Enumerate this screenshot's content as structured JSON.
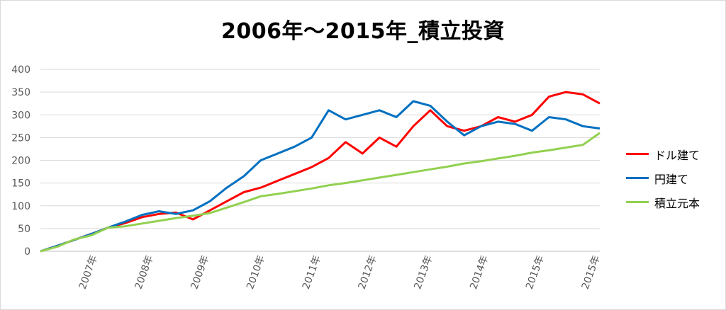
{
  "chart_data": {
    "type": "line",
    "title": "2006年～2015年_積立投資",
    "xlabel": "",
    "ylabel": "",
    "ylim": [
      0,
      400
    ],
    "yticks": [
      "0",
      "50",
      "100",
      "150",
      "200",
      "250",
      "300",
      "350",
      "400"
    ],
    "x_tick_labels": [
      "2007年",
      "2008年",
      "2009年",
      "2010年",
      "2011年",
      "2012年",
      "2013年",
      "2014年",
      "2015年",
      "2015年"
    ],
    "x": [
      "2006-01",
      "2006-06",
      "2007-01",
      "2007-06",
      "2008-01",
      "2008-03",
      "2008-06",
      "2008-09",
      "2008-12",
      "2009-03",
      "2009-06",
      "2009-12",
      "2010-06",
      "2010-12",
      "2011-03",
      "2011-06",
      "2011-09",
      "2011-12",
      "2012-03",
      "2012-06",
      "2012-09",
      "2012-12",
      "2013-03",
      "2013-06",
      "2013-09",
      "2013-12",
      "2014-03",
      "2014-06",
      "2014-09",
      "2014-12",
      "2015-03",
      "2015-06",
      "2015-09",
      "2015-12"
    ],
    "grid": true,
    "legend_position": "right",
    "series": [
      {
        "name": "ドル建て",
        "color": "#ff0000",
        "values": [
          0,
          12,
          25,
          38,
          52,
          62,
          75,
          82,
          85,
          70,
          90,
          110,
          130,
          140,
          155,
          170,
          185,
          205,
          240,
          215,
          250,
          230,
          275,
          310,
          275,
          265,
          275,
          295,
          285,
          300,
          340,
          350,
          345,
          325
        ]
      },
      {
        "name": "円建て",
        "color": "#0070c0",
        "values": [
          0,
          12,
          25,
          38,
          52,
          65,
          80,
          88,
          82,
          90,
          110,
          140,
          165,
          200,
          215,
          230,
          250,
          310,
          290,
          300,
          310,
          295,
          330,
          320,
          285,
          255,
          275,
          285,
          280,
          265,
          295,
          290,
          275,
          270
        ]
      },
      {
        "name": "積立元本",
        "color": "#92d050",
        "values": [
          0,
          10,
          26,
          35,
          52,
          55,
          61,
          67,
          73,
          78,
          84,
          96,
          108,
          121,
          126,
          132,
          138,
          145,
          150,
          156,
          162,
          168,
          174,
          180,
          186,
          193,
          198,
          204,
          210,
          217,
          222,
          228,
          234,
          260
        ]
      }
    ]
  }
}
